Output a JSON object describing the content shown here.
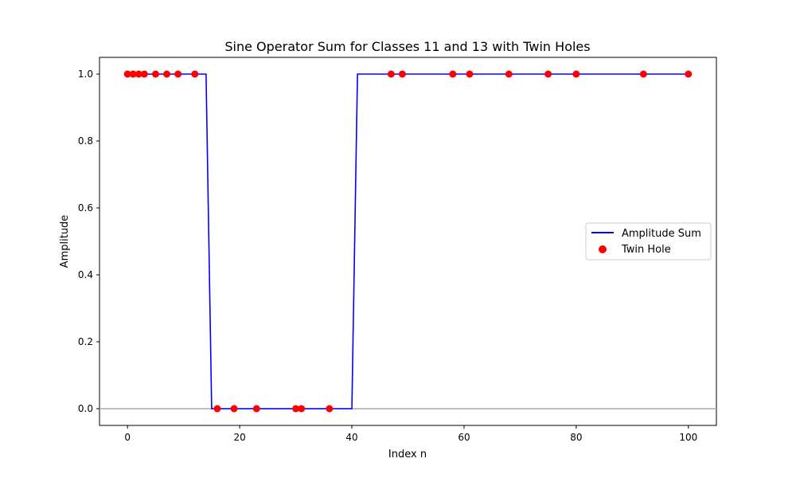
{
  "chart_data": {
    "type": "line",
    "title": "Sine Operator Sum for Classes 11 and 13 with Twin Holes",
    "xlabel": "Index n",
    "ylabel": "Amplitude",
    "xlim": [
      -5,
      105
    ],
    "ylim": [
      -0.05,
      1.05
    ],
    "xticks": [
      0,
      20,
      40,
      60,
      80,
      100
    ],
    "yticks": [
      0.0,
      0.2,
      0.4,
      0.6,
      0.8,
      1.0
    ],
    "xtick_labels": [
      "0",
      "20",
      "40",
      "60",
      "80",
      "100"
    ],
    "ytick_labels": [
      "0.0",
      "0.2",
      "0.4",
      "0.6",
      "0.8",
      "1.0"
    ],
    "grid": false,
    "legend_position": "center-right",
    "reference_line": {
      "y": 0,
      "color": "#aaaaaa"
    },
    "series": [
      {
        "name": "Amplitude Sum",
        "kind": "line",
        "color": "#0000ff",
        "x": [
          0,
          14,
          15,
          40,
          41,
          100
        ],
        "y": [
          1,
          1,
          0,
          0,
          1,
          1
        ]
      },
      {
        "name": "Twin Hole",
        "kind": "scatter",
        "color": "#ff0000",
        "x": [
          0,
          1,
          2,
          3,
          5,
          7,
          9,
          12,
          16,
          19,
          23,
          30,
          31,
          36,
          47,
          49,
          58,
          61,
          68,
          75,
          80,
          92,
          100
        ],
        "y": [
          1,
          1,
          1,
          1,
          1,
          1,
          1,
          1,
          0,
          0,
          0,
          0,
          0,
          0,
          1,
          1,
          1,
          1,
          1,
          1,
          1,
          1,
          1
        ]
      }
    ]
  }
}
